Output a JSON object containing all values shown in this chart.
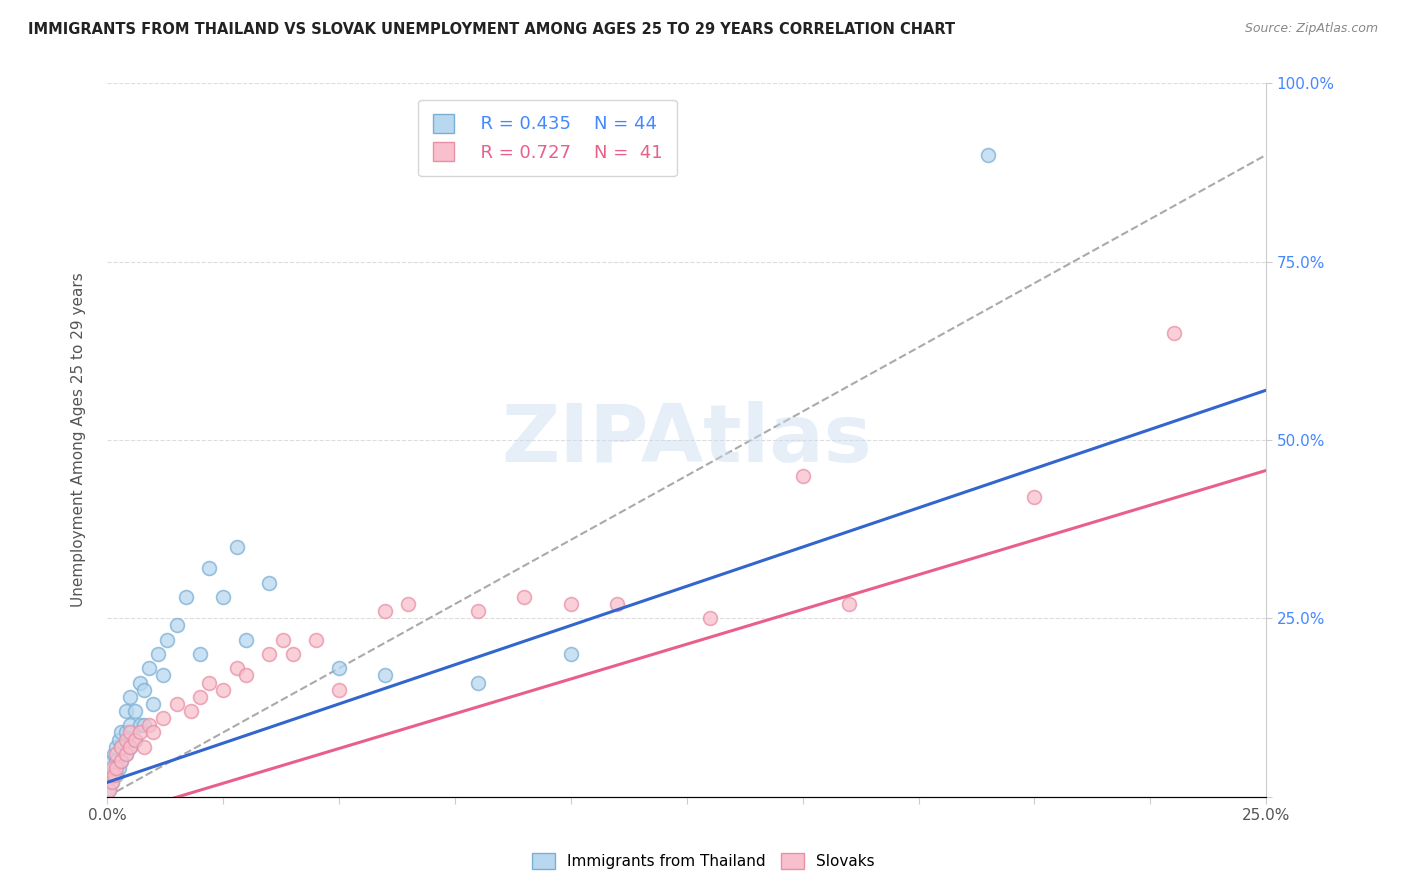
{
  "title": "IMMIGRANTS FROM THAILAND VS SLOVAK UNEMPLOYMENT AMONG AGES 25 TO 29 YEARS CORRELATION CHART",
  "source": "Source: ZipAtlas.com",
  "ylabel": "Unemployment Among Ages 25 to 29 years",
  "xlim": [
    0.0,
    0.25
  ],
  "ylim": [
    0.0,
    1.0
  ],
  "legend_blue_r": "R = 0.435",
  "legend_blue_n": "N = 44",
  "legend_pink_r": "R = 0.727",
  "legend_pink_n": "N =  41",
  "watermark": "ZIPAtlas",
  "blue_scatter_x": [
    0.0005,
    0.001,
    0.001,
    0.001,
    0.0015,
    0.0015,
    0.002,
    0.002,
    0.002,
    0.0025,
    0.0025,
    0.003,
    0.003,
    0.003,
    0.004,
    0.004,
    0.004,
    0.005,
    0.005,
    0.005,
    0.006,
    0.006,
    0.007,
    0.007,
    0.008,
    0.008,
    0.009,
    0.01,
    0.011,
    0.012,
    0.013,
    0.015,
    0.017,
    0.02,
    0.022,
    0.025,
    0.028,
    0.03,
    0.035,
    0.05,
    0.06,
    0.08,
    0.1,
    0.19
  ],
  "blue_scatter_y": [
    0.01,
    0.02,
    0.03,
    0.05,
    0.04,
    0.06,
    0.03,
    0.05,
    0.07,
    0.04,
    0.08,
    0.05,
    0.07,
    0.09,
    0.06,
    0.09,
    0.12,
    0.07,
    0.1,
    0.14,
    0.08,
    0.12,
    0.1,
    0.16,
    0.1,
    0.15,
    0.18,
    0.13,
    0.2,
    0.17,
    0.22,
    0.24,
    0.28,
    0.2,
    0.32,
    0.28,
    0.35,
    0.22,
    0.3,
    0.18,
    0.17,
    0.16,
    0.2,
    0.9
  ],
  "pink_scatter_x": [
    0.0005,
    0.001,
    0.001,
    0.0015,
    0.002,
    0.002,
    0.003,
    0.003,
    0.004,
    0.004,
    0.005,
    0.005,
    0.006,
    0.007,
    0.008,
    0.009,
    0.01,
    0.012,
    0.015,
    0.018,
    0.02,
    0.022,
    0.025,
    0.028,
    0.03,
    0.035,
    0.038,
    0.04,
    0.045,
    0.05,
    0.06,
    0.065,
    0.08,
    0.09,
    0.1,
    0.11,
    0.13,
    0.15,
    0.16,
    0.2,
    0.23
  ],
  "pink_scatter_y": [
    0.01,
    0.02,
    0.04,
    0.03,
    0.04,
    0.06,
    0.05,
    0.07,
    0.06,
    0.08,
    0.07,
    0.09,
    0.08,
    0.09,
    0.07,
    0.1,
    0.09,
    0.11,
    0.13,
    0.12,
    0.14,
    0.16,
    0.15,
    0.18,
    0.17,
    0.2,
    0.22,
    0.2,
    0.22,
    0.15,
    0.26,
    0.27,
    0.26,
    0.28,
    0.27,
    0.27,
    0.25,
    0.45,
    0.27,
    0.42,
    0.65
  ],
  "blue_line_slope": 2.2,
  "blue_line_intercept": 0.02,
  "pink_line_slope": 1.95,
  "pink_line_intercept": -0.03,
  "gray_dash_slope": 3.6,
  "gray_dash_intercept": 0.0
}
